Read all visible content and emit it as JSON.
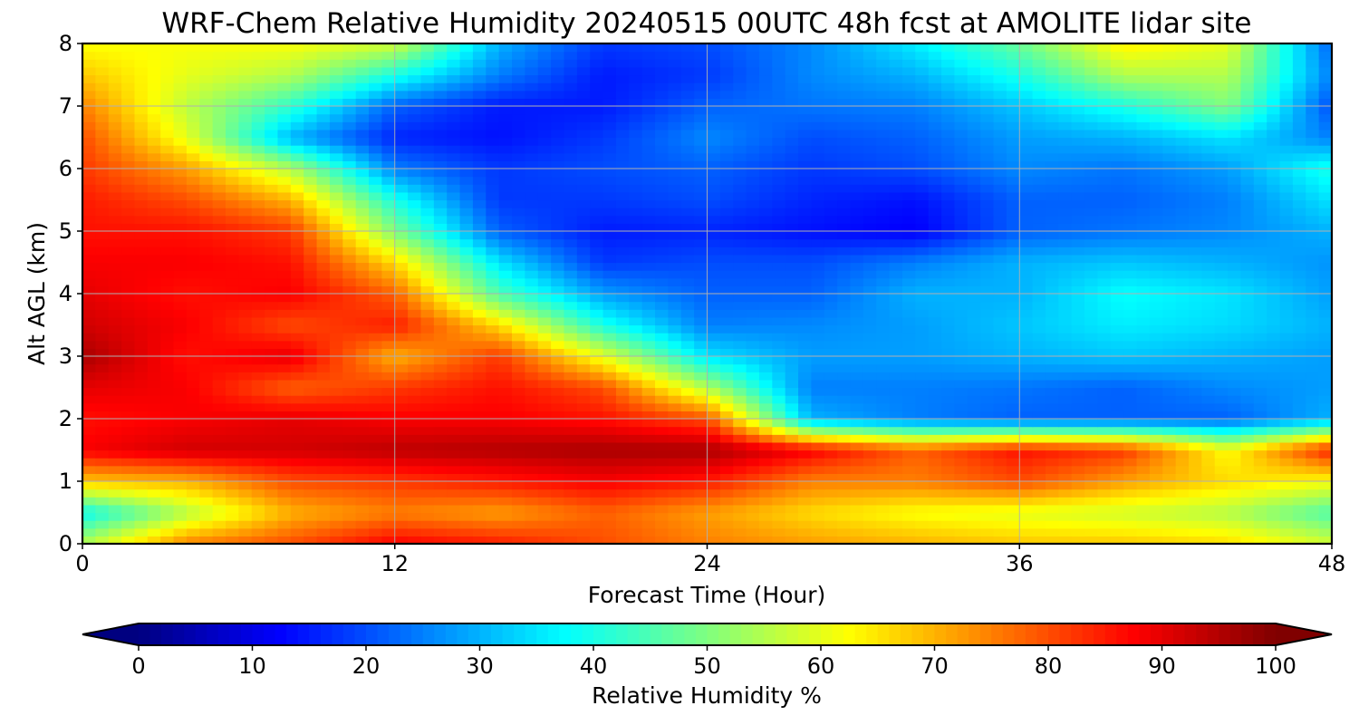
{
  "chart_data": {
    "type": "heatmap",
    "title": "WRF-Chem Relative Humidity 20240515 00UTC 48h fcst at AMOLITE lidar site",
    "xlabel": "Forecast Time (Hour)",
    "ylabel": "Alt AGL (km)",
    "xlim": [
      0,
      48
    ],
    "ylim": [
      0,
      8
    ],
    "xticks": [
      "0",
      "12",
      "24",
      "36",
      "48"
    ],
    "yticks": [
      "0",
      "1",
      "2",
      "3",
      "4",
      "5",
      "6",
      "7",
      "8"
    ],
    "grid": true,
    "colormap": "jet",
    "colorbar": {
      "label": "Relative Humidity %",
      "min": 0,
      "max": 100,
      "ticks": [
        "0",
        "10",
        "20",
        "30",
        "40",
        "50",
        "60",
        "70",
        "80",
        "90",
        "100"
      ],
      "extend": "both",
      "orientation": "horizontal",
      "placement": "bottom"
    },
    "x": [
      0,
      4,
      8,
      12,
      16,
      20,
      24,
      28,
      32,
      36,
      40,
      44,
      48
    ],
    "y": [
      0,
      0.5,
      1,
      1.5,
      2,
      2.5,
      3,
      3.5,
      4,
      4.5,
      5,
      5.5,
      6,
      6.5,
      7,
      7.5,
      8
    ],
    "z": [
      [
        55,
        75,
        80,
        88,
        85,
        80,
        75,
        72,
        70,
        68,
        68,
        66,
        58
      ],
      [
        38,
        55,
        70,
        75,
        72,
        78,
        72,
        66,
        62,
        60,
        58,
        55,
        45
      ],
      [
        68,
        70,
        80,
        82,
        85,
        88,
        85,
        75,
        75,
        80,
        72,
        66,
        62
      ],
      [
        88,
        92,
        92,
        94,
        95,
        96,
        96,
        88,
        78,
        86,
        82,
        62,
        85
      ],
      [
        86,
        88,
        90,
        88,
        88,
        86,
        80,
        30,
        25,
        22,
        22,
        22,
        30
      ],
      [
        90,
        88,
        78,
        82,
        86,
        80,
        55,
        25,
        25,
        24,
        22,
        26,
        28
      ],
      [
        96,
        86,
        90,
        70,
        82,
        60,
        35,
        28,
        28,
        30,
        32,
        30,
        28
      ],
      [
        92,
        88,
        80,
        85,
        66,
        40,
        25,
        26,
        28,
        32,
        36,
        34,
        30
      ],
      [
        90,
        86,
        88,
        78,
        45,
        28,
        22,
        22,
        30,
        30,
        38,
        35,
        28
      ],
      [
        88,
        88,
        86,
        66,
        35,
        18,
        20,
        20,
        25,
        30,
        32,
        30,
        27
      ],
      [
        86,
        86,
        82,
        50,
        22,
        15,
        16,
        14,
        12,
        22,
        24,
        26,
        30
      ],
      [
        85,
        80,
        70,
        40,
        18,
        18,
        20,
        16,
        14,
        22,
        22,
        25,
        35
      ],
      [
        82,
        72,
        55,
        25,
        18,
        20,
        22,
        18,
        20,
        26,
        24,
        28,
        40
      ],
      [
        80,
        60,
        30,
        16,
        14,
        18,
        26,
        20,
        22,
        28,
        30,
        35,
        25
      ],
      [
        75,
        56,
        42,
        22,
        15,
        15,
        22,
        24,
        25,
        32,
        40,
        50,
        20
      ],
      [
        68,
        60,
        55,
        40,
        25,
        15,
        18,
        26,
        30,
        40,
        55,
        55,
        25
      ],
      [
        62,
        62,
        62,
        58,
        30,
        18,
        20,
        26,
        36,
        48,
        64,
        60,
        22
      ]
    ]
  }
}
